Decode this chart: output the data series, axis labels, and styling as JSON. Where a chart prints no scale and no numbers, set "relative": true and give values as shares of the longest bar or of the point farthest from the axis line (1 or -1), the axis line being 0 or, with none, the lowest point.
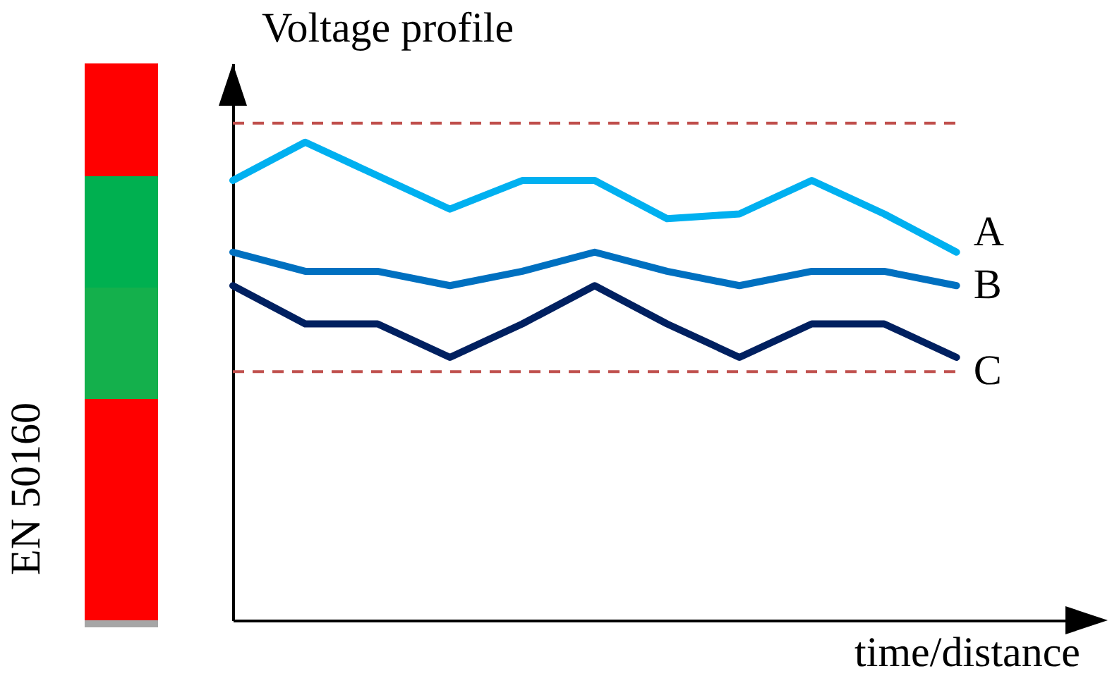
{
  "chart_data": {
    "type": "line",
    "relative": true,
    "xlabel": "time/distance",
    "ylabel": "Voltage profile",
    "categories": [
      null,
      null,
      null,
      null,
      null,
      null,
      null,
      null,
      null,
      null,
      null
    ],
    "series": [
      {
        "name": "A",
        "color": "#00b0f0",
        "values": [
          0.92,
          1,
          0.93,
          0.86,
          0.92,
          0.92,
          0.84,
          0.85,
          0.92,
          0.85,
          0.77
        ]
      },
      {
        "name": "B",
        "color": "#0070c0",
        "values": [
          0.77,
          0.73,
          0.73,
          0.7,
          0.73,
          0.77,
          0.73,
          0.7,
          0.73,
          0.73,
          0.7
        ]
      },
      {
        "name": "C",
        "color": "#002060",
        "values": [
          0.7,
          0.62,
          0.62,
          0.55,
          0.62,
          0.7,
          0.62,
          0.55,
          0.62,
          0.62,
          0.55
        ]
      }
    ],
    "ref_lines": [
      {
        "axis": "y",
        "value": 1.04,
        "color": "#c0504d",
        "line_style": "dashed"
      },
      {
        "axis": "y",
        "value": 0.52,
        "color": "#c0504d",
        "line_style": "dashed"
      }
    ],
    "annotations": [
      "EN 50160"
    ],
    "grid": false,
    "marker": "none",
    "line_style": "solid",
    "tick_labels": false
  }
}
